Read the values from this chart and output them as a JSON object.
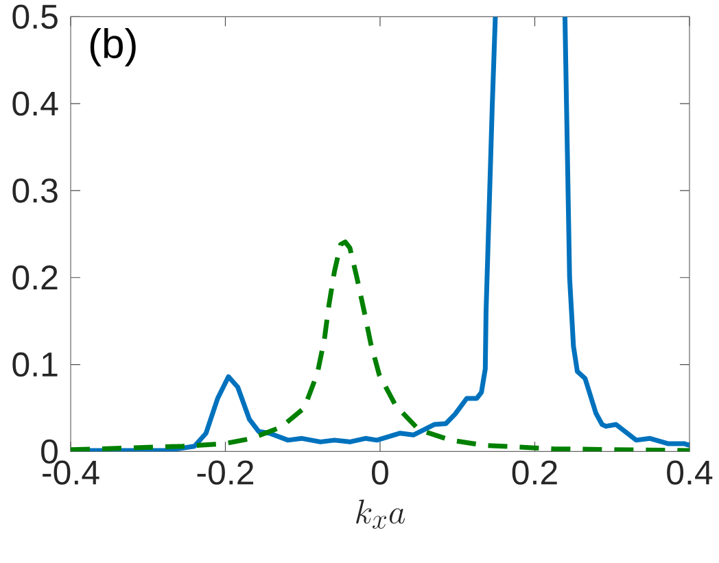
{
  "chart_data": {
    "type": "line",
    "xlabel": "k_x a",
    "annotations": [
      "(b)"
    ],
    "xlim": [
      -0.4,
      0.4
    ],
    "ylim": [
      0,
      0.5
    ],
    "xticks": [
      -0.4,
      -0.2,
      0,
      0.2,
      0.4
    ],
    "yticks": [
      0,
      0.1,
      0.2,
      0.3,
      0.4,
      0.5
    ],
    "grid": false,
    "series": [
      {
        "color": "#0072bd",
        "line_style": "solid",
        "x": [
          -0.4,
          -0.276,
          -0.24,
          -0.225,
          -0.21,
          -0.196,
          -0.184,
          -0.169,
          -0.157,
          -0.143,
          -0.119,
          -0.101,
          -0.077,
          -0.059,
          -0.039,
          -0.019,
          -0.004,
          0.026,
          0.043,
          0.07,
          0.085,
          0.097,
          0.112,
          0.125,
          0.131,
          0.136,
          0.137,
          0.141,
          0.145,
          0.149,
          0.194,
          0.239,
          0.242,
          0.245,
          0.25,
          0.255,
          0.265,
          0.279,
          0.287,
          0.292,
          0.305,
          0.331,
          0.349,
          0.372,
          0.393,
          0.4
        ],
        "values": [
          0.001,
          0.001,
          0.006,
          0.021,
          0.061,
          0.086,
          0.074,
          0.037,
          0.023,
          0.021,
          0.013,
          0.015,
          0.011,
          0.013,
          0.011,
          0.015,
          0.013,
          0.021,
          0.019,
          0.031,
          0.032,
          0.043,
          0.061,
          0.061,
          0.068,
          0.095,
          0.161,
          0.279,
          0.397,
          0.5,
          null,
          0.5,
          0.35,
          0.2,
          0.121,
          0.092,
          0.084,
          0.044,
          0.031,
          0.029,
          0.031,
          0.013,
          0.015,
          0.009,
          0.009,
          0.007
        ]
      },
      {
        "color": "#008000",
        "line_style": "dashed",
        "x": [
          -0.4,
          -0.255,
          -0.201,
          -0.166,
          -0.128,
          -0.098,
          -0.081,
          -0.072,
          -0.066,
          -0.059,
          -0.051,
          -0.045,
          -0.039,
          -0.03,
          -0.021,
          -0.012,
          -0.001,
          0.02,
          0.05,
          0.091,
          0.136,
          0.224,
          0.4
        ],
        "values": [
          0.002,
          0.006,
          0.009,
          0.015,
          0.028,
          0.05,
          0.09,
          0.129,
          0.169,
          0.207,
          0.238,
          0.241,
          0.234,
          0.2,
          0.163,
          0.124,
          0.088,
          0.053,
          0.025,
          0.013,
          0.007,
          0.003,
          0.001
        ]
      }
    ]
  }
}
